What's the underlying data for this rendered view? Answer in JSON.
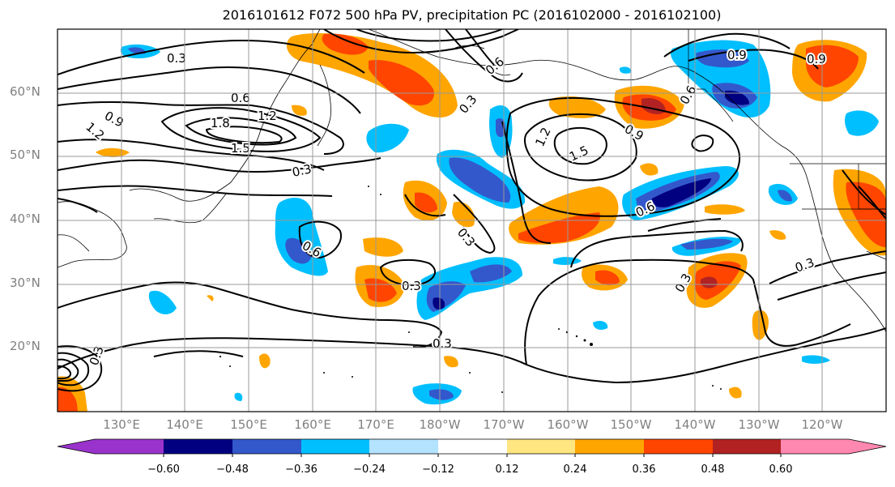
{
  "title": "2016101612 F072 500 hPa PV, precipitation PC (2016102000 - 2016102100)",
  "lat_labels": [
    "60°N",
    "50°N",
    "40°N",
    "30°N",
    "20°N"
  ],
  "lon_labels": [
    "130°E",
    "140°E",
    "150°E",
    "160°E",
    "170°E",
    "180°W",
    "170°W",
    "160°W",
    "150°W",
    "140°W",
    "130°W",
    "120°W"
  ],
  "contour_labels": [
    "0.3",
    "0.9",
    "1.2",
    "0.6",
    "1.8",
    "1.2",
    "1.5",
    "0.3",
    "0.6",
    "0.9",
    "0.6",
    "1.2",
    "1.5",
    "0.9",
    "0.9",
    "0.6",
    "0.3",
    "0.6",
    "0.3",
    "0.3",
    "0.3",
    "0.3",
    "0.3",
    "0.3"
  ],
  "colorbar": {
    "ticks": [
      "−0.60",
      "−0.48",
      "−0.36",
      "−0.24",
      "−0.12",
      "0.12",
      "0.24",
      "0.36",
      "0.48",
      "0.60"
    ],
    "colors": [
      "#9933cc",
      "#000080",
      "#3358cc",
      "#00bfff",
      "#b3e3ff",
      "#ffffff",
      "#ffe680",
      "#ffa500",
      "#ff4500",
      "#b22222",
      "#ff88b0"
    ]
  }
}
